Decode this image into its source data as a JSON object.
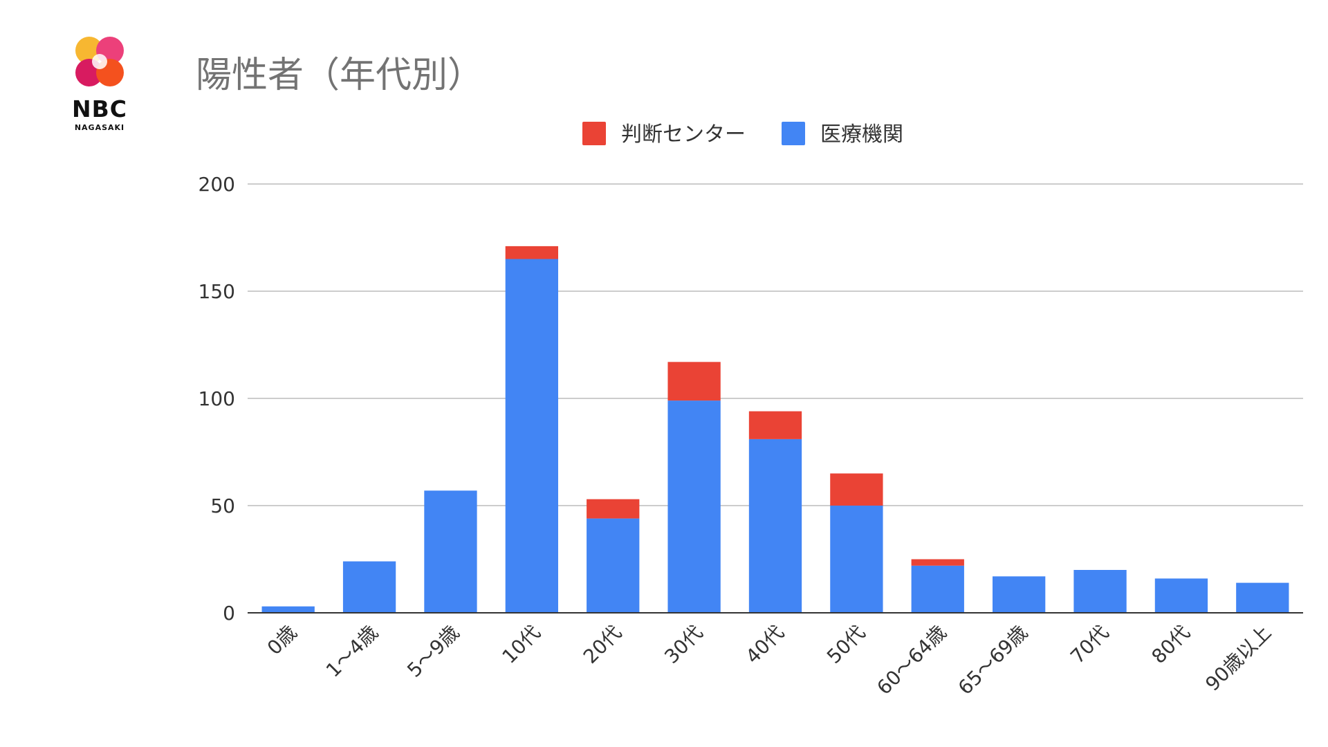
{
  "logo": {
    "name": "NBC",
    "subtitle": "NAGASAKI"
  },
  "colors": {
    "medical": "#4285F4",
    "center": "#EA4335",
    "grid": "#cccccc",
    "axis": "#333333",
    "title": "#737373"
  },
  "chart_data": {
    "type": "bar",
    "stacked": true,
    "title": "陽性者（年代別）",
    "xlabel": "",
    "ylabel": "",
    "ylim": [
      0,
      200
    ],
    "yticks": [
      0,
      50,
      100,
      150,
      200
    ],
    "grid": true,
    "legend_position": "top",
    "categories": [
      "0歳",
      "1〜4歳",
      "5〜9歳",
      "10代",
      "20代",
      "30代",
      "40代",
      "50代",
      "60〜64歳",
      "65〜69歳",
      "70代",
      "80代",
      "90歳以上"
    ],
    "series": [
      {
        "name": "医療機関",
        "color": "#4285F4",
        "values": [
          3,
          24,
          57,
          165,
          44,
          99,
          81,
          50,
          22,
          17,
          20,
          16,
          14
        ]
      },
      {
        "name": "判断センター",
        "color": "#EA4335",
        "values": [
          0,
          0,
          0,
          6,
          9,
          18,
          13,
          15,
          3,
          0,
          0,
          0,
          0
        ]
      }
    ]
  }
}
